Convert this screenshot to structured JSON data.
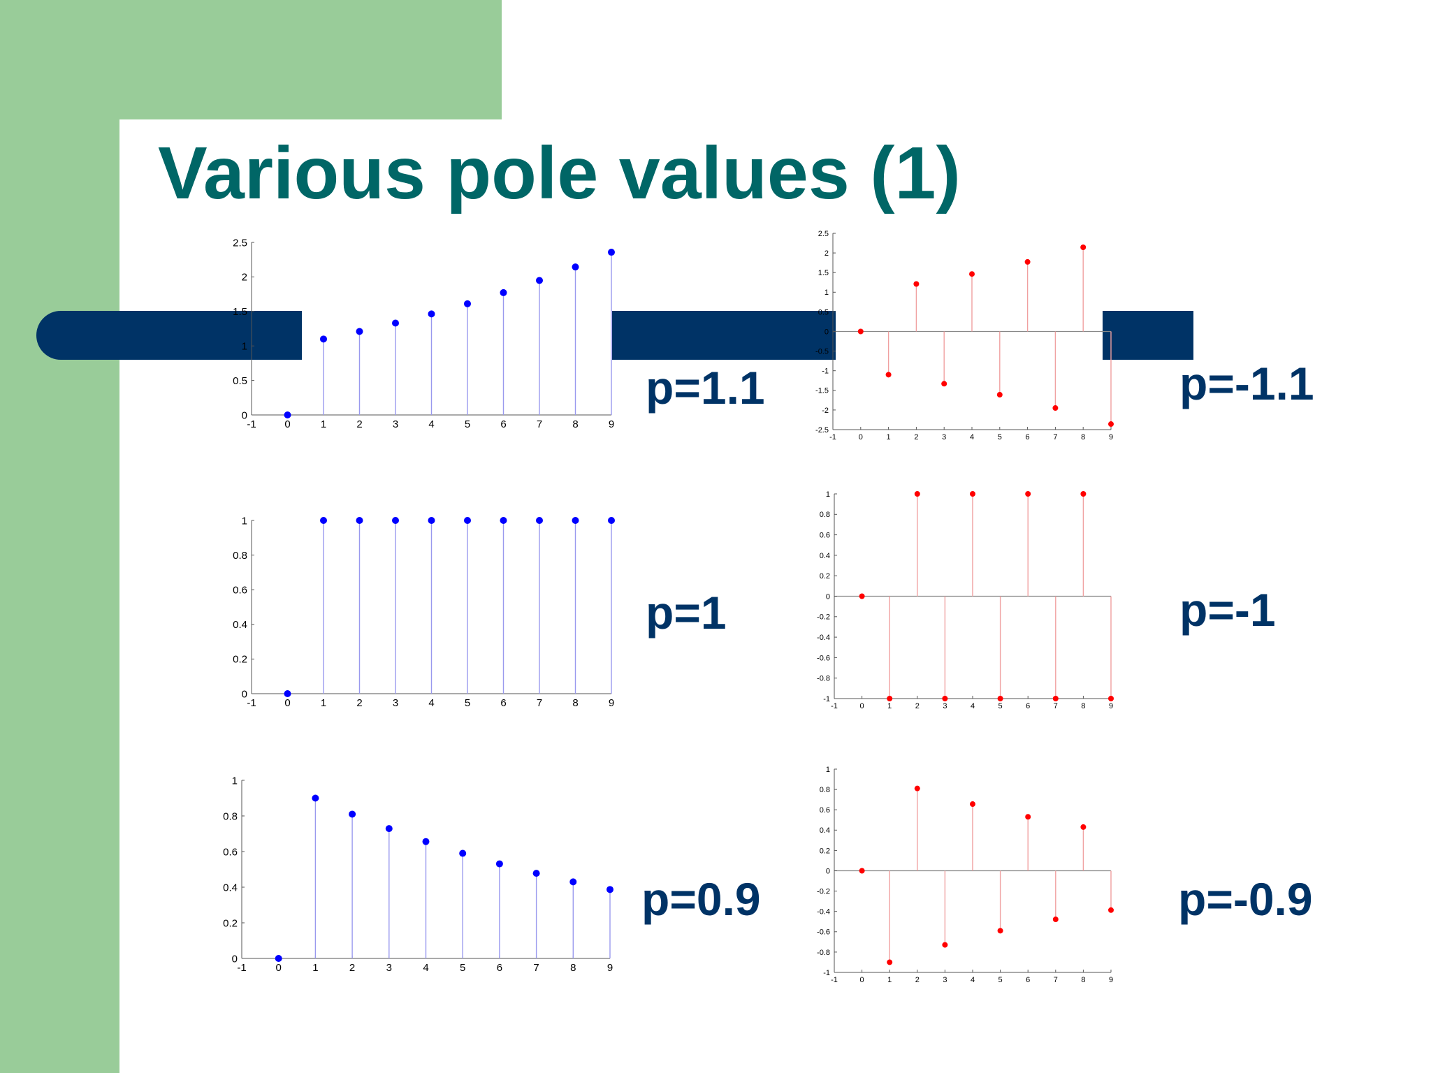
{
  "slide": {
    "title": "Various pole values (1)",
    "colors": {
      "title": "#006666",
      "accent_green": "#99cc99",
      "accent_navy": "#003366"
    }
  },
  "chart_data": [
    {
      "type": "stem",
      "pole_label": "p=1.1",
      "color": "#0000ff",
      "x": [
        0,
        1,
        2,
        3,
        4,
        5,
        6,
        7,
        8,
        9
      ],
      "values": [
        0,
        1.1,
        1.21,
        1.331,
        1.464,
        1.611,
        1.772,
        1.949,
        2.144,
        2.358
      ],
      "xlim": [
        -1,
        9
      ],
      "ylim": [
        0,
        2.5
      ],
      "xticks": [
        "-1",
        "0",
        "1",
        "2",
        "3",
        "4",
        "5",
        "6",
        "7",
        "8",
        "9"
      ],
      "yticks": [
        "0",
        "0.5",
        "1",
        "1.5",
        "2",
        "2.5"
      ],
      "ytick_values": [
        0,
        0.5,
        1,
        1.5,
        2,
        2.5
      ]
    },
    {
      "type": "stem",
      "pole_label": "p=-1.1",
      "color": "#ff0000",
      "x": [
        0,
        1,
        2,
        3,
        4,
        5,
        6,
        7,
        8,
        9
      ],
      "values": [
        0,
        -1.1,
        1.21,
        -1.331,
        1.464,
        -1.611,
        1.772,
        -1.949,
        2.144,
        -2.358
      ],
      "xlim": [
        -1,
        9
      ],
      "ylim": [
        -2.5,
        2.5
      ],
      "xticks": [
        "-1",
        "0",
        "1",
        "2",
        "3",
        "4",
        "5",
        "6",
        "7",
        "8",
        "9"
      ],
      "yticks": [
        "-2.5",
        "-2",
        "-1.5",
        "-1",
        "-0.5",
        "0",
        "0.5",
        "1",
        "1.5",
        "2",
        "2.5"
      ],
      "ytick_values": [
        -2.5,
        -2,
        -1.5,
        -1,
        -0.5,
        0,
        0.5,
        1,
        1.5,
        2,
        2.5
      ]
    },
    {
      "type": "stem",
      "pole_label": "p=1",
      "color": "#0000ff",
      "x": [
        0,
        1,
        2,
        3,
        4,
        5,
        6,
        7,
        8,
        9
      ],
      "values": [
        0,
        1,
        1,
        1,
        1,
        1,
        1,
        1,
        1,
        1
      ],
      "xlim": [
        -1,
        9
      ],
      "ylim": [
        0,
        1
      ],
      "xticks": [
        "-1",
        "0",
        "1",
        "2",
        "3",
        "4",
        "5",
        "6",
        "7",
        "8",
        "9"
      ],
      "yticks": [
        "0",
        "0.2",
        "0.4",
        "0.6",
        "0.8",
        "1"
      ],
      "ytick_values": [
        0,
        0.2,
        0.4,
        0.6,
        0.8,
        1
      ]
    },
    {
      "type": "stem",
      "pole_label": "p=-1",
      "color": "#ff0000",
      "x": [
        0,
        1,
        2,
        3,
        4,
        5,
        6,
        7,
        8,
        9
      ],
      "values": [
        0,
        -1,
        1,
        -1,
        1,
        -1,
        1,
        -1,
        1,
        -1
      ],
      "xlim": [
        -1,
        9
      ],
      "ylim": [
        -1,
        1
      ],
      "xticks": [
        "-1",
        "0",
        "1",
        "2",
        "3",
        "4",
        "5",
        "6",
        "7",
        "8",
        "9"
      ],
      "yticks": [
        "-1",
        "-0.8",
        "-0.6",
        "-0.4",
        "-0.2",
        "0",
        "0.2",
        "0.4",
        "0.6",
        "0.8",
        "1"
      ],
      "ytick_values": [
        -1,
        -0.8,
        -0.6,
        -0.4,
        -0.2,
        0,
        0.2,
        0.4,
        0.6,
        0.8,
        1
      ]
    },
    {
      "type": "stem",
      "pole_label": "p=0.9",
      "color": "#0000ff",
      "x": [
        0,
        1,
        2,
        3,
        4,
        5,
        6,
        7,
        8,
        9
      ],
      "values": [
        0,
        0.9,
        0.81,
        0.729,
        0.656,
        0.59,
        0.531,
        0.478,
        0.43,
        0.387
      ],
      "xlim": [
        -1,
        9
      ],
      "ylim": [
        0,
        1
      ],
      "xticks": [
        "-1",
        "0",
        "1",
        "2",
        "3",
        "4",
        "5",
        "6",
        "7",
        "8",
        "9"
      ],
      "yticks": [
        "0",
        "0.2",
        "0.4",
        "0.6",
        "0.8",
        "1"
      ],
      "ytick_values": [
        0,
        0.2,
        0.4,
        0.6,
        0.8,
        1
      ]
    },
    {
      "type": "stem",
      "pole_label": "p=-0.9",
      "color": "#ff0000",
      "x": [
        0,
        1,
        2,
        3,
        4,
        5,
        6,
        7,
        8,
        9
      ],
      "values": [
        0,
        -0.9,
        0.81,
        -0.729,
        0.656,
        -0.59,
        0.531,
        -0.478,
        0.43,
        -0.387
      ],
      "xlim": [
        -1,
        9
      ],
      "ylim": [
        -1,
        1
      ],
      "xticks": [
        "-1",
        "0",
        "1",
        "2",
        "3",
        "4",
        "5",
        "6",
        "7",
        "8",
        "9"
      ],
      "yticks": [
        "-1",
        "-0.8",
        "-0.6",
        "-0.4",
        "-0.2",
        "0",
        "0.2",
        "0.4",
        "0.6",
        "0.8",
        "1"
      ],
      "ytick_values": [
        -1,
        -0.8,
        -0.6,
        -0.4,
        -0.2,
        0,
        0.2,
        0.4,
        0.6,
        0.8,
        1
      ]
    }
  ]
}
